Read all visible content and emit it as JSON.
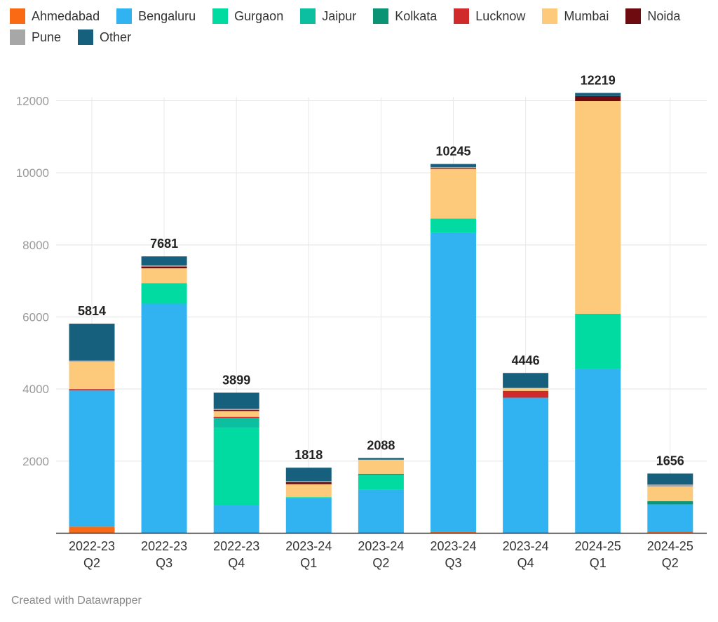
{
  "chart_data": {
    "type": "stacked-bar",
    "title": "",
    "xlabel": "",
    "ylabel": "",
    "ylim": [
      0,
      12000
    ],
    "yticks": [
      2000,
      4000,
      6000,
      8000,
      10000,
      12000
    ],
    "grid": true,
    "legend_position": "top-left",
    "categories": [
      [
        "2022-23",
        "Q2"
      ],
      [
        "2022-23",
        "Q3"
      ],
      [
        "2022-23",
        "Q4"
      ],
      [
        "2023-24",
        "Q1"
      ],
      [
        "2023-24",
        "Q2"
      ],
      [
        "2023-24",
        "Q3"
      ],
      [
        "2023-24",
        "Q4"
      ],
      [
        "2024-25",
        "Q1"
      ],
      [
        "2024-25",
        "Q2"
      ]
    ],
    "totals": [
      5814,
      7681,
      3899,
      1818,
      2088,
      10245,
      4446,
      12219,
      1656
    ],
    "series": [
      {
        "name": "Ahmedabad",
        "color": "#fa6a14",
        "values": [
          180,
          0,
          0,
          0,
          0,
          30,
          0,
          0,
          50
        ]
      },
      {
        "name": "Bengaluru",
        "color": "#31b3f2",
        "values": [
          3780,
          6370,
          780,
          970,
          1200,
          8300,
          3760,
          4560,
          750
        ]
      },
      {
        "name": "Gurgaon",
        "color": "#01dba2",
        "values": [
          0,
          570,
          2150,
          30,
          420,
          400,
          0,
          1530,
          0
        ]
      },
      {
        "name": "Jaipur",
        "color": "#0cbfa0",
        "values": [
          0,
          0,
          270,
          0,
          0,
          0,
          0,
          0,
          0
        ]
      },
      {
        "name": "Kolkata",
        "color": "#0a9374",
        "values": [
          0,
          0,
          0,
          0,
          30,
          0,
          0,
          0,
          90
        ]
      },
      {
        "name": "Lucknow",
        "color": "#d12a2a",
        "values": [
          40,
          0,
          30,
          0,
          0,
          0,
          190,
          0,
          0
        ]
      },
      {
        "name": "Mumbai",
        "color": "#fdc97a",
        "values": [
          760,
          410,
          160,
          360,
          390,
          1380,
          80,
          5900,
          400
        ]
      },
      {
        "name": "Noida",
        "color": "#6e0b10",
        "values": [
          0,
          50,
          30,
          60,
          0,
          20,
          0,
          140,
          0
        ]
      },
      {
        "name": "Pune",
        "color": "#a7a7a7",
        "values": [
          30,
          30,
          30,
          30,
          0,
          30,
          0,
          0,
          60
        ]
      },
      {
        "name": "Other",
        "color": "#17607d",
        "values": [
          1024,
          251,
          449,
          368,
          48,
          85,
          416,
          89,
          306
        ]
      }
    ]
  },
  "footer": {
    "text": "Created with Datawrapper"
  }
}
